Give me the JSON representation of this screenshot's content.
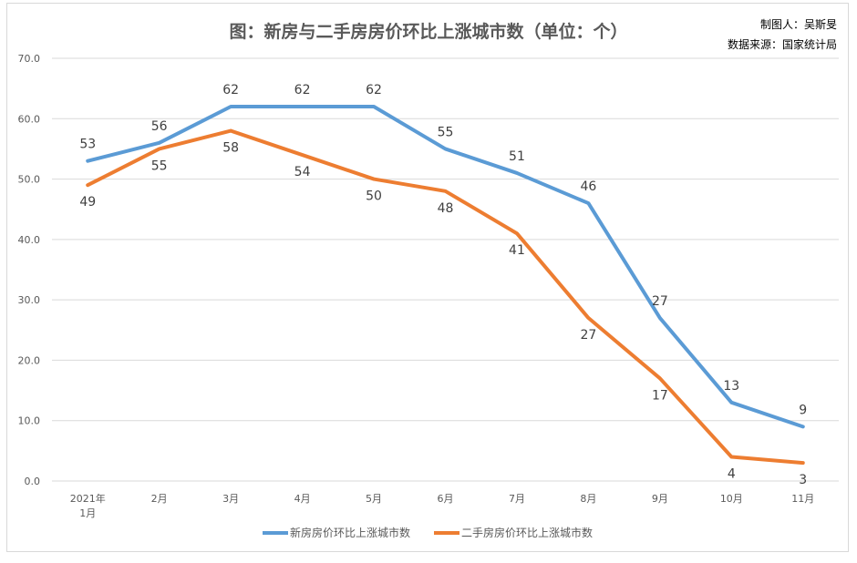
{
  "chart_data": {
    "type": "line",
    "title": "图：新房与二手房房价环比上涨城市数（单位：个）",
    "annotations": [
      "制图人：吴斯旻",
      "数据来源：国家统计局"
    ],
    "categories": [
      [
        "2021年",
        "1月"
      ],
      [
        "2月"
      ],
      [
        "3月"
      ],
      [
        "4月"
      ],
      [
        "5月"
      ],
      [
        "6月"
      ],
      [
        "7月"
      ],
      [
        "8月"
      ],
      [
        "9月"
      ],
      [
        "10月"
      ],
      [
        "11月"
      ]
    ],
    "series": [
      {
        "name": "新房房价环比上涨城市数",
        "color": "#5b9bd5",
        "values": [
          53,
          56,
          62,
          62,
          62,
          55,
          51,
          46,
          27,
          13,
          9
        ]
      },
      {
        "name": "二手房房价环比上涨城市数",
        "color": "#ed7d31",
        "values": [
          49,
          55,
          58,
          54,
          50,
          48,
          41,
          27,
          17,
          4,
          3
        ]
      }
    ],
    "yticks": [
      "0.0",
      "10.0",
      "20.0",
      "30.0",
      "40.0",
      "50.0",
      "60.0",
      "70.0"
    ],
    "ylim": [
      0,
      70
    ],
    "grid": true,
    "legend": "bottom"
  }
}
